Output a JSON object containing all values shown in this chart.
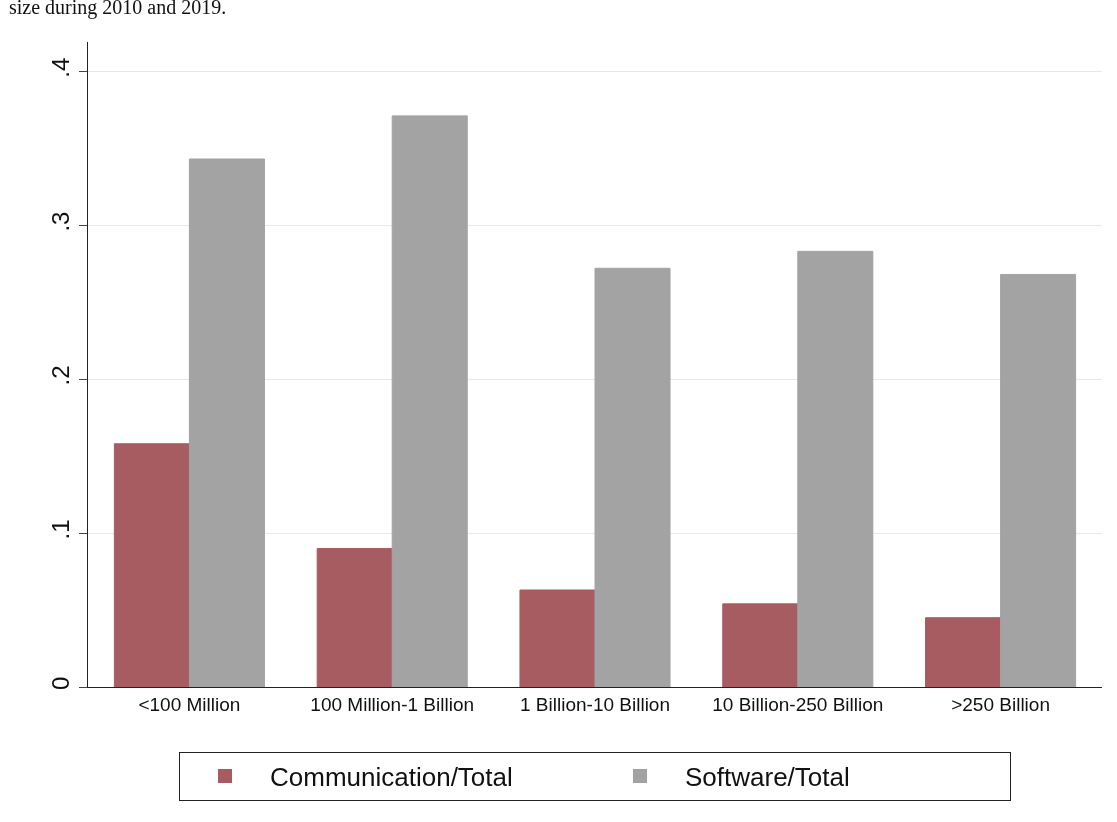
{
  "chart_data": {
    "type": "bar",
    "annotations": [
      "size during 2010 and 2019."
    ],
    "categories": [
      "<100 Million",
      "100 Million-1 Billion",
      "1 Billion-10 Billion",
      "10 Billion-250 Billion",
      ">250 Billion"
    ],
    "series": [
      {
        "name": "Communication/Total",
        "color": "#a65c60",
        "values": [
          0.158,
          0.09,
          0.063,
          0.054,
          0.045
        ]
      },
      {
        "name": "Software/Total",
        "color": "#a3a3a3",
        "values": [
          0.343,
          0.371,
          0.272,
          0.283,
          0.268
        ]
      }
    ],
    "ylim": [
      0,
      0.419
    ],
    "yticks": [
      {
        "value": 0,
        "label": "0"
      },
      {
        "value": 0.1,
        "label": ".1"
      },
      {
        "value": 0.2,
        "label": ".2"
      },
      {
        "value": 0.3,
        "label": ".3"
      },
      {
        "value": 0.4,
        "label": ".4"
      }
    ],
    "grid": "y",
    "legend": "bottom"
  }
}
